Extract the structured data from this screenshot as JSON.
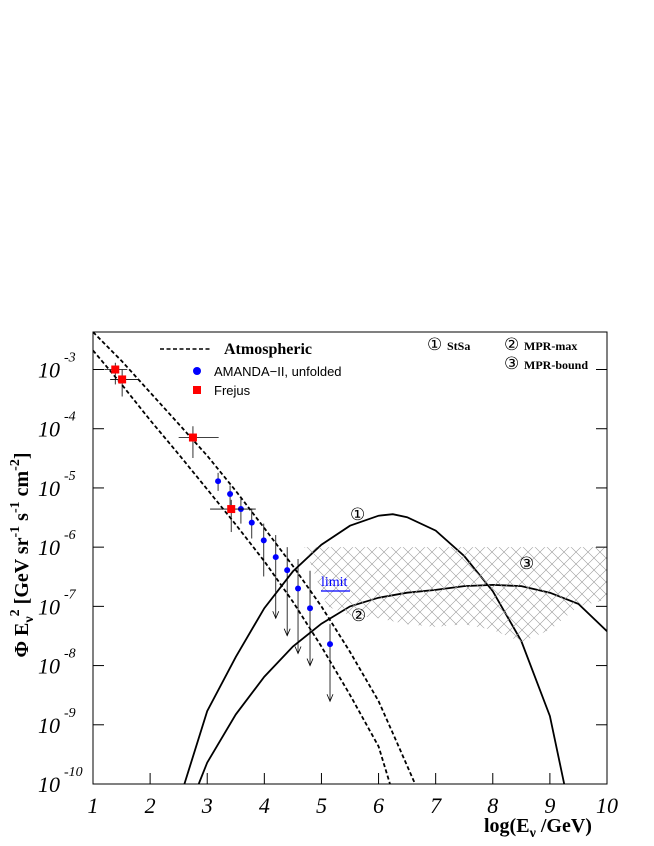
{
  "chart_data": {
    "type": "line",
    "log_y": true,
    "xlabel": [
      "log(E",
      "ν",
      " /GeV)"
    ],
    "ylabel": [
      "Φ E",
      "ν",
      "2",
      " [GeV sr",
      "-1",
      " s",
      "-1",
      " cm",
      "-2",
      "]"
    ],
    "xlim": [
      1,
      10
    ],
    "ylim": [
      1e-10,
      0.0043
    ],
    "xticks": [
      1,
      2,
      3,
      4,
      5,
      6,
      7,
      8,
      9,
      10
    ],
    "yticks": [
      {
        "value": 0.001,
        "label": "10",
        "exponent": "-3"
      },
      {
        "value": 0.0001,
        "label": "10",
        "exponent": "-4"
      },
      {
        "value": 1e-05,
        "label": "10",
        "exponent": "-5"
      },
      {
        "value": 1e-06,
        "label": "10",
        "exponent": "-6"
      },
      {
        "value": 1e-07,
        "label": "10",
        "exponent": "-7"
      },
      {
        "value": 1e-08,
        "label": "10",
        "exponent": "-8"
      },
      {
        "value": 1e-09,
        "label": "10",
        "exponent": "-9"
      },
      {
        "value": 1e-10,
        "label": "10",
        "exponent": "-10"
      }
    ],
    "annotation": "limit",
    "series": [
      {
        "name": "Atmospheric",
        "type": "line",
        "dashed": true,
        "color": "#000000",
        "x": [
          1,
          1.5,
          2,
          2.5,
          3,
          3.5,
          4,
          4.5,
          5,
          5.5,
          6,
          6.3,
          6.64
        ],
        "values": [
          0.0043,
          0.0014,
          0.00041,
          0.00012,
          3.5e-05,
          8.9e-06,
          2.1e-06,
          4.8e-07,
          1e-07,
          1.7e-08,
          2.5e-09,
          5.6e-10,
          1e-10
        ]
      },
      {
        "type": "line",
        "dashed": true,
        "color": "#000000",
        "x": [
          1,
          1.5,
          2,
          2.5,
          3,
          3.5,
          4,
          4.5,
          5,
          5.5,
          6,
          6.2
        ],
        "values": [
          0.0021,
          0.00056,
          0.00014,
          3.7e-05,
          9.5e-06,
          2.4e-06,
          5.8e-07,
          1.2e-07,
          2.1e-08,
          3.2e-09,
          4.3e-10,
          1e-10
        ]
      },
      {
        "name": "StSa",
        "marker": "①",
        "type": "line",
        "color": "#000000",
        "x": [
          2.6,
          3,
          3.5,
          4,
          4.5,
          5,
          5.5,
          6,
          6.25,
          6.5,
          7,
          7.5,
          8,
          8.5,
          9,
          9.25
        ],
        "values": [
          1e-10,
          1.7e-09,
          1.4e-08,
          9.3e-08,
          3.9e-07,
          1.1e-06,
          2.3e-06,
          3.4e-06,
          3.6e-06,
          3.2e-06,
          1.9e-06,
          7.1e-07,
          1.8e-07,
          2.6e-08,
          1.4e-09,
          1e-10
        ]
      },
      {
        "name": "MPR-max",
        "marker": "②",
        "type": "line",
        "color": "#000000",
        "x": [
          2.85,
          3,
          3.5,
          4,
          4.5,
          5,
          5.5,
          6,
          6.5,
          7,
          7.5,
          8,
          8.5,
          9,
          9.5,
          10
        ],
        "values": [
          1e-10,
          2.3e-10,
          1.5e-09,
          6.5e-09,
          2.1e-08,
          5.1e-08,
          1e-07,
          1.4e-07,
          1.7e-07,
          1.9e-07,
          2.2e-07,
          2.3e-07,
          2.2e-07,
          1.7e-07,
          1.1e-07,
          3.8e-08
        ]
      },
      {
        "name": "MPR-bound",
        "marker": "③",
        "type": "band",
        "color": "#999999",
        "x": [
          4.7,
          5.1,
          5.5,
          6,
          6.5,
          7,
          7.5,
          8,
          8.5,
          9,
          9.5,
          10
        ],
        "values": [
          1e-06,
          1e-06,
          1e-06,
          1e-06,
          1e-06,
          1e-06,
          1e-06,
          1e-06,
          1e-06,
          1e-06,
          1e-06,
          1e-06
        ],
        "lower": [
          1e-06,
          1e-07,
          7.1e-08,
          6.3e-08,
          5e-08,
          4.5e-08,
          5e-08,
          4e-08,
          2.5e-08,
          4e-08,
          1e-07,
          1.3e-07
        ]
      },
      {
        "name": "AMANDA−II, unfolded",
        "type": "points",
        "shape": "circle",
        "color": "#0000ff",
        "x": [
          3.19,
          3.4,
          3.59,
          3.78,
          3.99,
          4.2,
          4.4,
          4.59,
          4.8,
          5.15
        ],
        "values": [
          1.3e-05,
          7.9e-06,
          4.4e-06,
          2.6e-06,
          1.3e-06,
          6.8e-07,
          4.1e-07,
          2e-07,
          9.3e-08,
          2.3e-08
        ],
        "y_high": [
          1.8e-05,
          1.1e-05,
          7.1e-06,
          4.5e-06,
          2.5e-06,
          1.6e-06,
          1e-06,
          6.3e-07,
          4e-07,
          5e-08
        ],
        "y_low": [
          8.9e-06,
          5e-06,
          2.5e-06,
          1.4e-06,
          3.2e-07,
          6.3e-08,
          3.2e-08,
          1.6e-08,
          1e-08,
          2.5e-09
        ],
        "limit": [
          false,
          false,
          false,
          false,
          false,
          true,
          true,
          true,
          true,
          true
        ]
      },
      {
        "name": "Frejus",
        "type": "points",
        "shape": "square",
        "color": "#ff0000",
        "x": [
          1.39,
          1.51,
          2.75,
          3.42
        ],
        "values": [
          0.001,
          0.00068,
          7.1e-05,
          4.4e-06
        ],
        "x_low": [
          1.2,
          1.3,
          2.5,
          3.05
        ],
        "x_high": [
          1.6,
          1.8,
          3.2,
          3.85
        ],
        "y_low": [
          0.00056,
          0.00035,
          3.2e-05,
          1.8e-06
        ],
        "y_high": [
          0.0013,
          0.001,
          0.00011,
          6.3e-06
        ]
      }
    ]
  }
}
